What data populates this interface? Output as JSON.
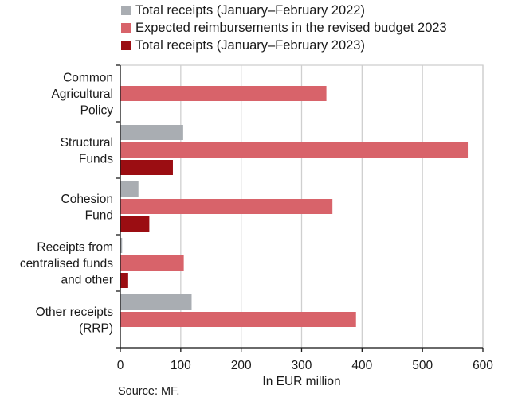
{
  "chart_data": {
    "type": "bar",
    "orientation": "horizontal",
    "categories": [
      [
        "Common",
        "Agricultural",
        "Policy"
      ],
      [
        "Structural",
        "Funds"
      ],
      [
        "Cohesion",
        "Fund"
      ],
      [
        "Receipts from",
        "centralised funds",
        "and other"
      ],
      [
        "Other receipts",
        "(RRP)"
      ]
    ],
    "series": [
      {
        "name": "Total receipts (January–February 2022)",
        "color": "#a9adb2",
        "values": [
          0,
          104,
          30,
          3,
          118
        ]
      },
      {
        "name": "Expected reimbursements in the revised budget 2023",
        "color": "#d8636a",
        "values": [
          341,
          575,
          351,
          105,
          390
        ]
      },
      {
        "name": "Total receipts (January–February 2023)",
        "color": "#9b0d12",
        "values": [
          0,
          87,
          48,
          13,
          0
        ]
      }
    ],
    "xlabel": "In EUR million",
    "xlim": [
      0,
      600
    ],
    "xticks": [
      0,
      100,
      200,
      300,
      400,
      500,
      600
    ],
    "grid": true,
    "legend_position": "top"
  },
  "source": "Source: MF."
}
